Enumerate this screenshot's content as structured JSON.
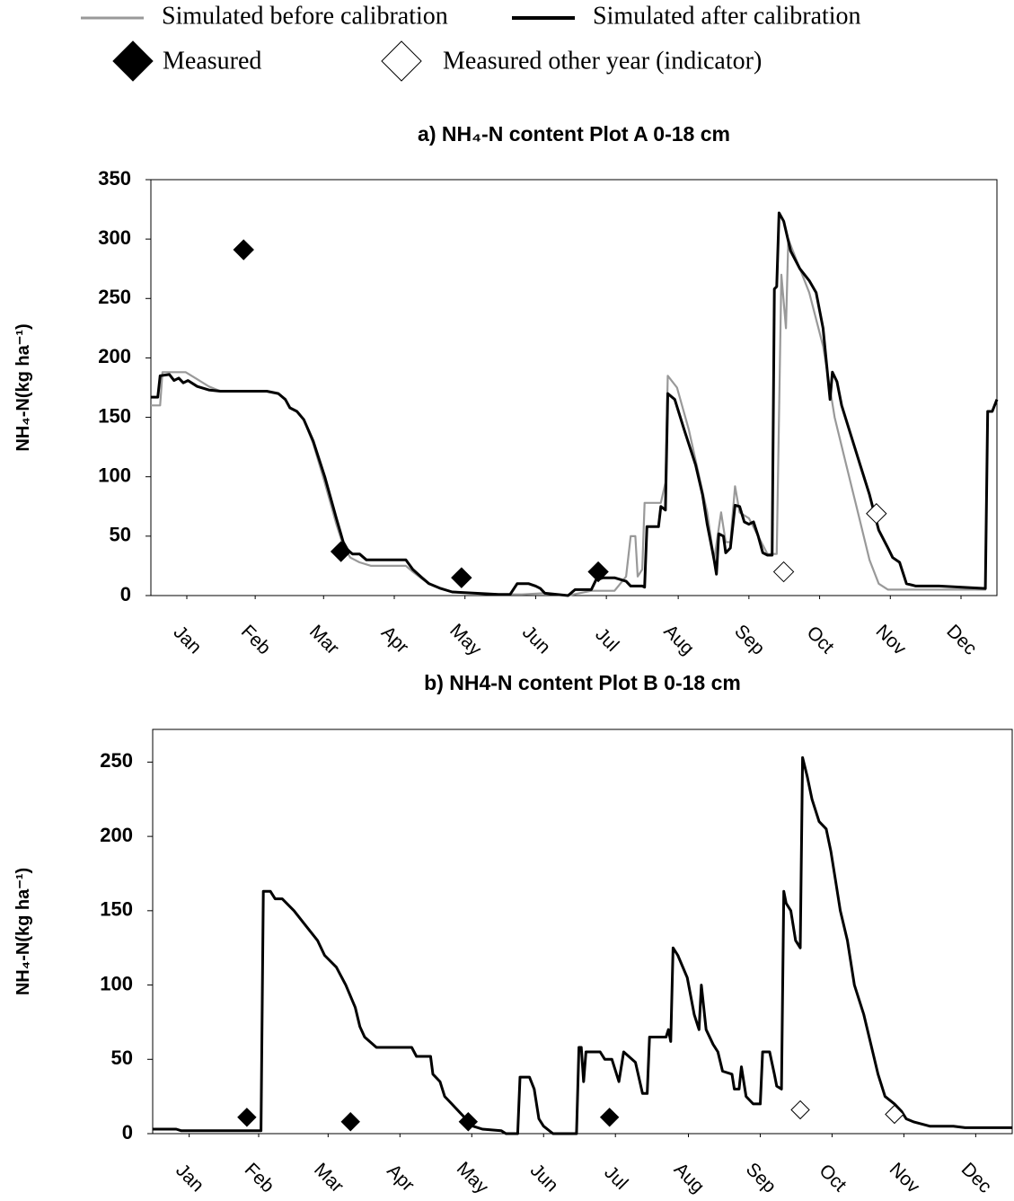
{
  "chart_data": [
    {
      "type": "line",
      "title": "a) NH₄-N content Plot A 0-18 cm",
      "ylabel": "NH₄-N(kg ha⁻¹)",
      "xlim": [
        0,
        365
      ],
      "xticks": [
        {
          "value": 15.5,
          "label": "Jan"
        },
        {
          "value": 45,
          "label": "Feb"
        },
        {
          "value": 74.5,
          "label": "Mar"
        },
        {
          "value": 105,
          "label": "Apr"
        },
        {
          "value": 135.5,
          "label": "May"
        },
        {
          "value": 166,
          "label": "Jun"
        },
        {
          "value": 196.5,
          "label": "Jul"
        },
        {
          "value": 227.5,
          "label": "Aug"
        },
        {
          "value": 258,
          "label": "Sep"
        },
        {
          "value": 288.5,
          "label": "Oct"
        },
        {
          "value": 319,
          "label": "Nov"
        },
        {
          "value": 349.5,
          "label": "Dec"
        }
      ],
      "ylim": [
        0,
        350
      ],
      "yticks": [
        0,
        50,
        100,
        150,
        200,
        250,
        300,
        350
      ],
      "series": [
        {
          "name": "Simulated before calibration",
          "mode": "line",
          "color": "#999999",
          "x": [
            0,
            4,
            5,
            15,
            20,
            25,
            30,
            50,
            55,
            58,
            60,
            63,
            66,
            70,
            75,
            80,
            83,
            86,
            90,
            95,
            110,
            113,
            117,
            120,
            125,
            130,
            140,
            150,
            160,
            170,
            180,
            190,
            200,
            205,
            207,
            209,
            210,
            212,
            213,
            220,
            222,
            223,
            227,
            232,
            236,
            240,
            243,
            246,
            248,
            250,
            252,
            254,
            258,
            262,
            266,
            270,
            272,
            274,
            275,
            279,
            284,
            290,
            295,
            300,
            305,
            310,
            314,
            318,
            330,
            345,
            360,
            361,
            363,
            365
          ],
          "values": [
            160,
            160,
            188,
            188,
            182,
            176,
            172,
            172,
            170,
            165,
            158,
            155,
            148,
            128,
            95,
            60,
            42,
            32,
            28,
            25,
            25,
            20,
            14,
            10,
            6,
            3,
            2,
            1,
            1,
            2,
            0,
            4,
            4,
            16,
            50,
            50,
            16,
            22,
            78,
            78,
            95,
            185,
            175,
            140,
            105,
            70,
            30,
            70,
            45,
            45,
            92,
            70,
            65,
            50,
            35,
            35,
            270,
            225,
            300,
            280,
            255,
            210,
            150,
            110,
            70,
            30,
            10,
            5,
            5,
            5,
            5,
            155,
            155,
            165
          ]
        },
        {
          "name": "Simulated after calibration",
          "mode": "line",
          "color": "#000000",
          "x": [
            0,
            3,
            4,
            8,
            10,
            12,
            14,
            16,
            20,
            25,
            30,
            50,
            55,
            58,
            60,
            63,
            66,
            70,
            75,
            80,
            83,
            85,
            87,
            90,
            93,
            110,
            113,
            117,
            120,
            125,
            130,
            140,
            150,
            155,
            158,
            163,
            166,
            168,
            170,
            180,
            183,
            190,
            192,
            195,
            200,
            205,
            207,
            212,
            213,
            214,
            219,
            220,
            222,
            223,
            226,
            230,
            235,
            238,
            240,
            242,
            243,
            244,
            245,
            247,
            248,
            250,
            252,
            254,
            256,
            258,
            260,
            262,
            264,
            266,
            268,
            269,
            270,
            271,
            273,
            276,
            280,
            284,
            287,
            290,
            293,
            294,
            296,
            298,
            302,
            306,
            310,
            314,
            318,
            320,
            323,
            326,
            330,
            340,
            350,
            360,
            361,
            363,
            365
          ],
          "values": [
            167,
            167,
            185,
            186,
            181,
            183,
            179,
            181,
            176,
            173,
            172,
            172,
            170,
            165,
            158,
            155,
            148,
            130,
            100,
            65,
            45,
            38,
            35,
            35,
            30,
            30,
            22,
            15,
            10,
            6,
            3,
            2,
            1,
            1,
            10,
            10,
            8,
            6,
            2,
            0,
            5,
            5,
            13,
            15,
            15,
            12,
            8,
            8,
            7,
            58,
            58,
            75,
            72,
            170,
            165,
            140,
            110,
            85,
            60,
            40,
            30,
            18,
            52,
            50,
            36,
            40,
            76,
            75,
            62,
            60,
            62,
            50,
            36,
            34,
            34,
            258,
            260,
            322,
            315,
            290,
            275,
            265,
            255,
            225,
            165,
            188,
            180,
            160,
            135,
            110,
            85,
            55,
            40,
            32,
            28,
            10,
            8,
            8,
            7,
            6,
            155,
            155,
            165
          ]
        },
        {
          "name": "Measured",
          "mode": "marker",
          "color": "#000000",
          "fill": "#000000",
          "x": [
            40,
            82,
            134,
            193
          ],
          "values": [
            291,
            37,
            15,
            20
          ]
        },
        {
          "name": "Measured other year (indicator)",
          "mode": "marker",
          "color": "#000000",
          "fill": "#ffffff",
          "x": [
            273,
            313
          ],
          "values": [
            20,
            69
          ]
        }
      ]
    },
    {
      "type": "line",
      "title": "b) NH4-N content Plot B 0-18 cm",
      "ylabel": "NH₄-N(kg ha⁻¹)",
      "xlim": [
        0,
        365
      ],
      "xticks": [
        {
          "value": 15.5,
          "label": "Jan"
        },
        {
          "value": 45,
          "label": "Feb"
        },
        {
          "value": 74.5,
          "label": "Mar"
        },
        {
          "value": 105,
          "label": "Apr"
        },
        {
          "value": 135.5,
          "label": "May"
        },
        {
          "value": 166,
          "label": "Jun"
        },
        {
          "value": 196.5,
          "label": "Jul"
        },
        {
          "value": 227.5,
          "label": "Aug"
        },
        {
          "value": 258,
          "label": "Sep"
        },
        {
          "value": 288.5,
          "label": "Oct"
        },
        {
          "value": 319,
          "label": "Nov"
        },
        {
          "value": 349.5,
          "label": "Dec"
        }
      ],
      "ylim": [
        0,
        272
      ],
      "yticks": [
        0,
        50,
        100,
        150,
        200,
        250
      ],
      "series": [
        {
          "name": "Simulated after calibration",
          "mode": "line",
          "color": "#000000",
          "x": [
            0,
            10,
            12,
            30,
            46,
            47,
            50,
            52,
            55,
            60,
            65,
            70,
            73,
            78,
            82,
            86,
            88,
            90,
            95,
            110,
            112,
            118,
            119,
            122,
            124,
            127,
            130,
            133,
            136,
            140,
            148,
            150,
            155,
            156,
            160,
            162,
            164,
            166,
            170,
            180,
            181,
            182,
            183,
            184,
            190,
            192,
            195,
            198,
            200,
            205,
            208,
            210,
            211,
            215,
            218,
            219,
            220,
            221,
            223,
            227,
            230,
            232,
            233,
            235,
            238,
            240,
            242,
            246,
            247,
            249,
            250,
            252,
            255,
            258,
            259,
            262,
            264,
            265,
            267,
            268,
            269,
            271,
            273,
            275,
            276,
            278,
            280,
            283,
            286,
            288,
            290,
            292,
            295,
            298,
            302,
            305,
            308,
            311,
            315,
            318,
            320,
            323,
            330,
            340,
            345,
            365
          ],
          "values": [
            3,
            3,
            2,
            2,
            2,
            163,
            163,
            158,
            158,
            150,
            140,
            130,
            120,
            112,
            100,
            85,
            72,
            65,
            58,
            58,
            52,
            52,
            40,
            35,
            25,
            20,
            15,
            10,
            5,
            3,
            2,
            0,
            0,
            38,
            38,
            30,
            10,
            5,
            0,
            0,
            58,
            58,
            35,
            55,
            55,
            50,
            50,
            35,
            55,
            48,
            27,
            27,
            65,
            65,
            65,
            70,
            62,
            125,
            120,
            105,
            80,
            70,
            100,
            70,
            60,
            55,
            42,
            40,
            30,
            30,
            45,
            25,
            20,
            20,
            55,
            55,
            40,
            32,
            30,
            163,
            155,
            150,
            130,
            125,
            253,
            240,
            225,
            210,
            205,
            190,
            170,
            150,
            130,
            100,
            80,
            60,
            40,
            25,
            20,
            15,
            10,
            8,
            5,
            5,
            4,
            4
          ]
        },
        {
          "name": "Measured",
          "mode": "marker",
          "color": "#000000",
          "fill": "#000000",
          "x": [
            40,
            84,
            134,
            194
          ],
          "values": [
            11,
            8,
            8,
            11
          ]
        },
        {
          "name": "Measured other year (indicator)",
          "mode": "marker",
          "color": "#000000",
          "fill": "#ffffff",
          "x": [
            275,
            315
          ],
          "values": [
            16,
            13
          ]
        }
      ]
    }
  ]
}
